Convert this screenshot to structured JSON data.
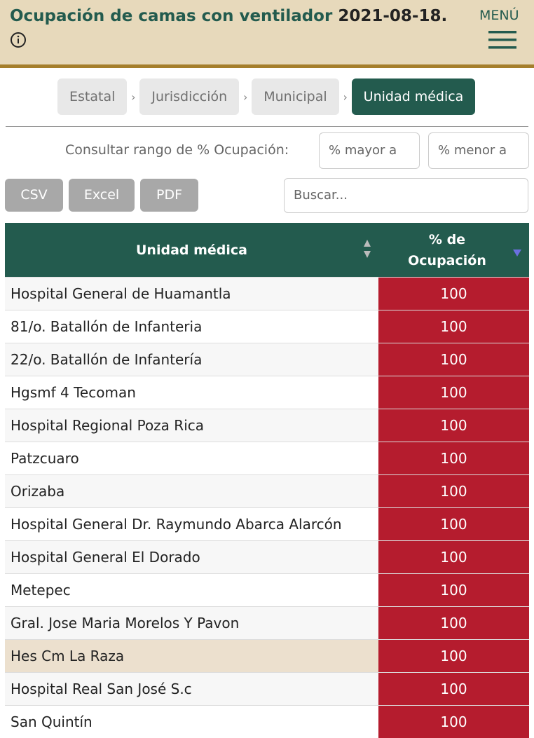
{
  "header": {
    "title": "Ocupación de camas con ventilador",
    "date": "2021-08-18.",
    "menu": "MENÚ"
  },
  "breadcrumbs": [
    "Estatal",
    "Jurisdicción",
    "Municipal",
    "Unidad médica"
  ],
  "filter": {
    "label": "Consultar rango de % Ocupación:",
    "min_placeholder": "% mayor a",
    "max_placeholder": "% menor a"
  },
  "export_buttons": [
    "CSV",
    "Excel",
    "PDF"
  ],
  "search_placeholder": "Buscar...",
  "table": {
    "columns": [
      "Unidad médica",
      "% de Ocupación"
    ],
    "rows": [
      [
        "Hospital General de Huamantla",
        100
      ],
      [
        "81/o. Batallón de Infanteria",
        100
      ],
      [
        "22/o. Batallón de Infantería",
        100
      ],
      [
        "Hgsmf 4 Tecoman",
        100
      ],
      [
        "Hospital Regional Poza Rica",
        100
      ],
      [
        "Patzcuaro",
        100
      ],
      [
        "Orizaba",
        100
      ],
      [
        "Hospital General Dr. Raymundo Abarca Alarcón",
        100
      ],
      [
        "Hospital General El Dorado",
        100
      ],
      [
        "Metepec",
        100
      ],
      [
        "Gral. Jose Maria Morelos Y Pavon",
        100
      ],
      [
        "Hes Cm La Raza",
        100
      ],
      [
        "Hospital Real San José S.c",
        100
      ],
      [
        "San Quintín",
        100
      ]
    ]
  }
}
